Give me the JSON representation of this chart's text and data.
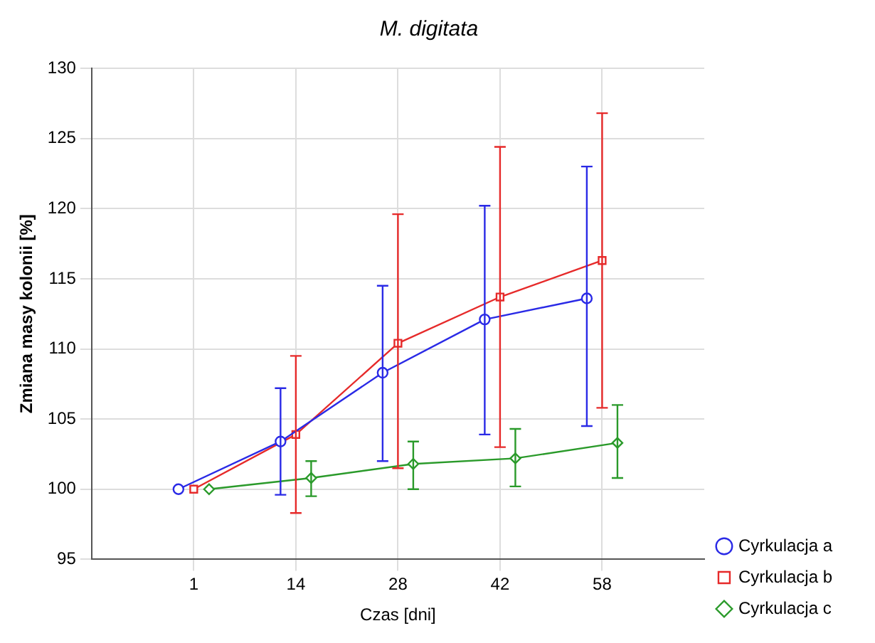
{
  "chart_data": {
    "type": "line",
    "title": "M. digitata",
    "xlabel": "Czas [dni]",
    "ylabel": "Zmiana masy kolonii [%]",
    "categories": [
      "1",
      "14",
      "28",
      "42",
      "58"
    ],
    "ylim": [
      95,
      130
    ],
    "yticks": [
      95,
      100,
      105,
      110,
      115,
      120,
      125,
      130
    ],
    "grid": true,
    "legend": "bottom right",
    "line_style": "solid",
    "series": [
      {
        "name": "Cyrkulacja a",
        "color": "#2a2ae6",
        "marker": "circle",
        "values": [
          100,
          103.4,
          108.3,
          112.1,
          113.6
        ],
        "errors": [
          null,
          [
            99.6,
            107.2
          ],
          [
            102.0,
            114.5
          ],
          [
            103.9,
            120.2
          ],
          [
            104.5,
            123.0
          ]
        ]
      },
      {
        "name": "Cyrkulacja b",
        "color": "#e62a2a",
        "marker": "square",
        "values": [
          100,
          103.9,
          110.4,
          113.7,
          116.3
        ],
        "errors": [
          null,
          [
            98.3,
            109.5
          ],
          [
            101.5,
            119.6
          ],
          [
            103.0,
            124.4
          ],
          [
            105.8,
            126.8
          ]
        ]
      },
      {
        "name": "Cyrkulacja c",
        "color": "#2a9a2a",
        "marker": "diamond",
        "values": [
          100,
          100.8,
          101.8,
          102.2,
          103.3
        ],
        "errors": [
          null,
          [
            99.5,
            102.0
          ],
          [
            100.0,
            103.4
          ],
          [
            100.2,
            104.3
          ],
          [
            100.8,
            106.0
          ]
        ]
      }
    ]
  }
}
